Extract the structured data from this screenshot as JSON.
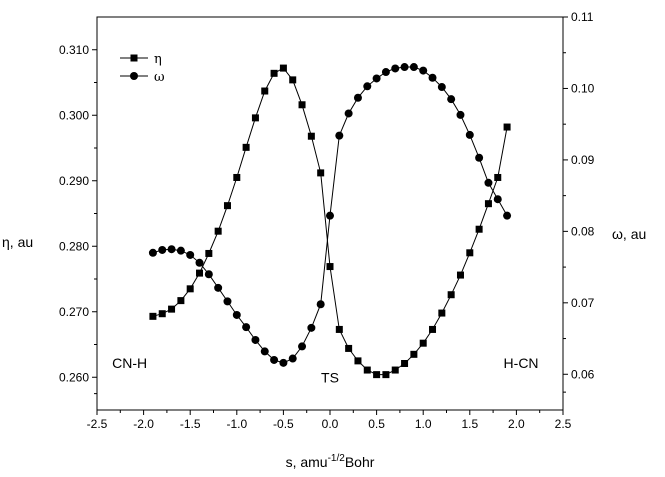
{
  "chart_data": {
    "type": "scatter",
    "xlabel": "s, amu",
    "xlabel_sup": "-1/2",
    "xlabel_suffix": "Bohr",
    "ylabel_left": "η, au",
    "ylabel_right": "ω, au",
    "xlim": [
      -2.5,
      2.5
    ],
    "ylim_left": [
      0.255,
      0.315
    ],
    "ylim_right": [
      0.055,
      0.11
    ],
    "x_ticks": [
      -2.5,
      -2.0,
      -1.5,
      -1.0,
      -0.5,
      0.0,
      0.5,
      1.0,
      1.5,
      2.0,
      2.5
    ],
    "x_tick_labels": [
      "-2.5",
      "-2.0",
      "-1.5",
      "-1.0",
      "-0.5",
      "0.0",
      "0.5",
      "1.0",
      "1.5",
      "2.0",
      "2.5"
    ],
    "y_left_ticks": [
      0.26,
      0.27,
      0.28,
      0.29,
      0.3,
      0.31
    ],
    "y_left_tick_labels": [
      "0.260",
      "0.270",
      "0.280",
      "0.290",
      "0.300",
      "0.310"
    ],
    "y_right_ticks": [
      0.06,
      0.07,
      0.08,
      0.09,
      0.1,
      0.11
    ],
    "y_right_tick_labels": [
      "0.06",
      "0.07",
      "0.08",
      "0.09",
      "0.10",
      "0.11"
    ],
    "legend_position": "top-left",
    "grid": false,
    "annotations": [
      {
        "text": "CN-H",
        "x": -2.15,
        "y_left": 0.2614
      },
      {
        "text": "TS",
        "x": 0.0,
        "y_left": 0.2592
      },
      {
        "text": "H-CN",
        "x": 2.05,
        "y_left": 0.2614
      }
    ],
    "series": [
      {
        "name": "η",
        "axis": "left",
        "marker": "square",
        "x": [
          -1.9,
          -1.8,
          -1.7,
          -1.6,
          -1.5,
          -1.4,
          -1.3,
          -1.2,
          -1.1,
          -1.0,
          -0.9,
          -0.8,
          -0.7,
          -0.6,
          -0.5,
          -0.4,
          -0.3,
          -0.2,
          -0.1,
          0.0,
          0.1,
          0.2,
          0.3,
          0.4,
          0.5,
          0.6,
          0.7,
          0.8,
          0.9,
          1.0,
          1.1,
          1.2,
          1.3,
          1.4,
          1.5,
          1.6,
          1.7,
          1.8,
          1.9
        ],
        "values": [
          0.2693,
          0.2697,
          0.2704,
          0.2717,
          0.2735,
          0.2759,
          0.2789,
          0.2823,
          0.2862,
          0.2905,
          0.2951,
          0.2996,
          0.3037,
          0.3064,
          0.3072,
          0.3054,
          0.3016,
          0.2968,
          0.2912,
          0.2769,
          0.2673,
          0.2644,
          0.2625,
          0.2611,
          0.2604,
          0.2604,
          0.2611,
          0.2621,
          0.2635,
          0.2652,
          0.2673,
          0.2698,
          0.2726,
          0.2756,
          0.279,
          0.2826,
          0.2865,
          0.2905,
          0.2982
        ]
      },
      {
        "name": "ω",
        "axis": "right",
        "marker": "circle",
        "x": [
          -1.9,
          -1.8,
          -1.7,
          -1.6,
          -1.5,
          -1.4,
          -1.3,
          -1.2,
          -1.1,
          -1.0,
          -0.9,
          -0.8,
          -0.7,
          -0.6,
          -0.5,
          -0.4,
          -0.3,
          -0.2,
          -0.1,
          0.0,
          0.1,
          0.2,
          0.3,
          0.4,
          0.5,
          0.6,
          0.7,
          0.8,
          0.9,
          1.0,
          1.1,
          1.2,
          1.3,
          1.4,
          1.5,
          1.6,
          1.7,
          1.8,
          1.9
        ],
        "values": [
          0.077,
          0.0774,
          0.0775,
          0.0773,
          0.0767,
          0.0756,
          0.074,
          0.0721,
          0.0702,
          0.0683,
          0.0666,
          0.0648,
          0.0632,
          0.062,
          0.0616,
          0.0622,
          0.0639,
          0.0665,
          0.0698,
          0.0822,
          0.0934,
          0.0965,
          0.0987,
          0.1003,
          0.1014,
          0.1023,
          0.1028,
          0.103,
          0.103,
          0.1025,
          0.1015,
          0.1002,
          0.0985,
          0.0963,
          0.0935,
          0.0903,
          0.0868,
          0.0845,
          0.0822
        ]
      }
    ]
  }
}
